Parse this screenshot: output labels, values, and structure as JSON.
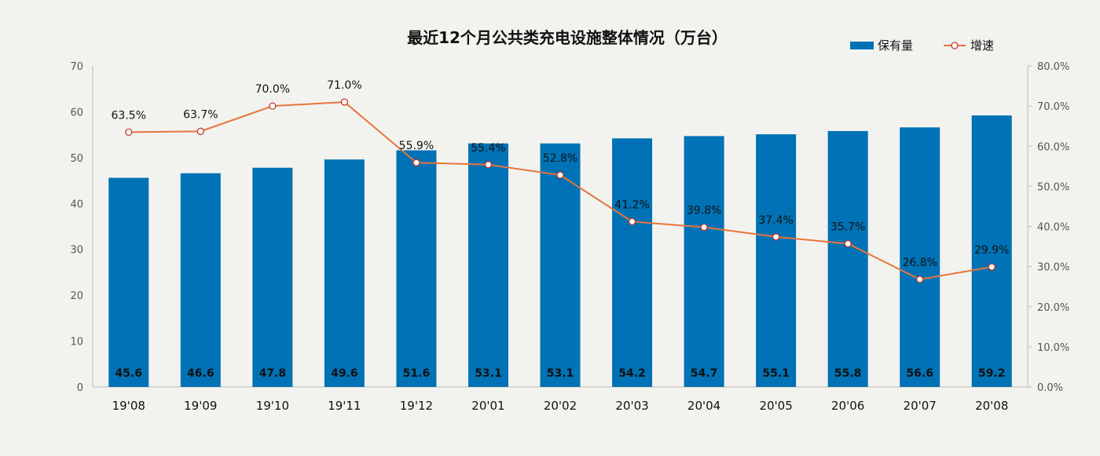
{
  "chart_data": {
    "type": "bar",
    "title": "最近12个月公共类充电设施整体情况（万台）",
    "categories": [
      "19'08",
      "19'09",
      "19'10",
      "19'11",
      "19'12",
      "20'01",
      "20'02",
      "20'03",
      "20'04",
      "20'05",
      "20'06",
      "20'07",
      "20'08"
    ],
    "series": [
      {
        "name": "保有量",
        "type": "bar",
        "axis": "left",
        "color": "#0072b5",
        "values": [
          45.6,
          46.6,
          47.8,
          49.6,
          51.6,
          53.1,
          53.1,
          54.2,
          54.7,
          55.1,
          55.8,
          56.6,
          59.2
        ],
        "labels": [
          "45.6",
          "46.6",
          "47.8",
          "49.6",
          "51.6",
          "53.1",
          "53.1",
          "54.2",
          "54.7",
          "55.1",
          "55.8",
          "56.6",
          "59.2"
        ]
      },
      {
        "name": "增速",
        "type": "line",
        "axis": "right",
        "color": "#e8743b",
        "values": [
          63.5,
          63.7,
          70.0,
          71.0,
          55.9,
          55.4,
          52.8,
          41.2,
          39.8,
          37.4,
          35.7,
          26.8,
          29.9
        ],
        "labels": [
          "63.5%",
          "63.7%",
          "70.0%",
          "71.0%",
          "55.9%",
          "55.4%",
          "52.8%",
          "41.2%",
          "39.8%",
          "37.4%",
          "35.7%",
          "26.8%",
          "29.9%"
        ]
      }
    ],
    "ylim": [
      0,
      70
    ],
    "yticks": [
      "0",
      "10",
      "20",
      "30",
      "40",
      "50",
      "60",
      "70"
    ],
    "y2lim": [
      0,
      80
    ],
    "y2ticks": [
      "0.0%",
      "10.0%",
      "20.0%",
      "30.0%",
      "40.0%",
      "50.0%",
      "60.0%",
      "70.0%",
      "80.0%"
    ],
    "legend": [
      "保有量",
      "增速"
    ],
    "legend_position": "top-right",
    "grid": false
  }
}
